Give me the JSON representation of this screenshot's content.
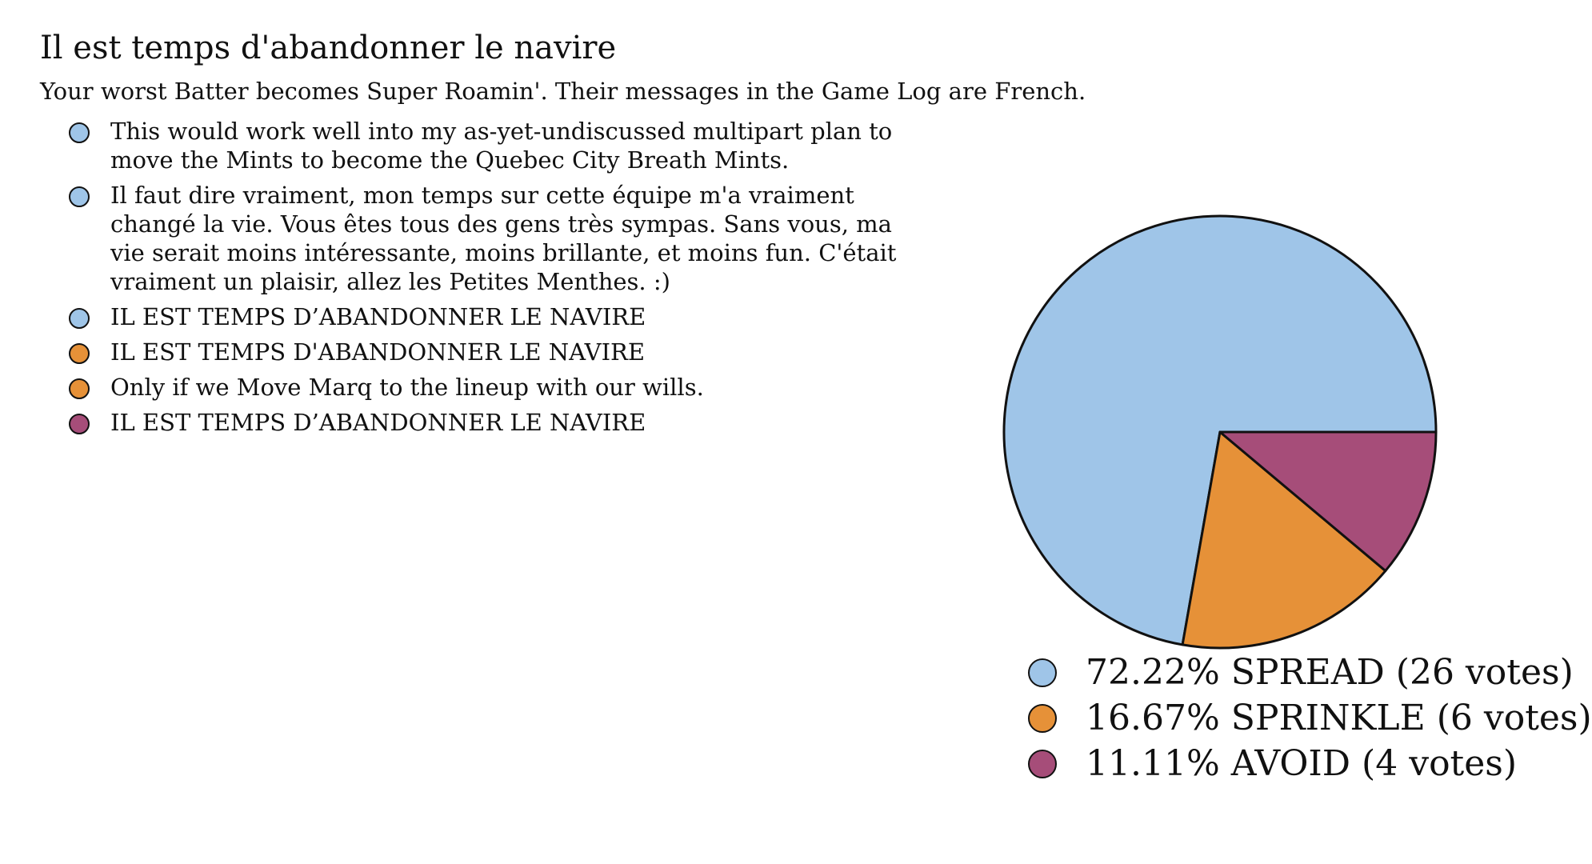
{
  "header": {
    "title": "Il est temps d'abandonner le navire",
    "subtitle": "Your worst Batter becomes Super Roamin'. Their messages in the Game Log are French."
  },
  "comments": [
    {
      "text": "This would work well into my as-yet-undiscussed multipart plan to\nmove the Mints to become the Quebec City Breath Mints.",
      "color": "#9fc5e8"
    },
    {
      "text": "Il faut dire vraiment, mon temps sur cette équipe m'a vraiment\nchangé la vie. Vous êtes tous des gens très sympas. Sans vous, ma\nvie serait moins intéressante, moins brillante, et moins fun. C'était\nvraiment un plaisir, allez les Petites Menthes. :)",
      "color": "#9fc5e8"
    },
    {
      "text": "IL EST TEMPS D’ABANDONNER LE NAVIRE",
      "color": "#9fc5e8"
    },
    {
      "text": "IL EST TEMPS D'ABANDONNER LE NAVIRE",
      "color": "#e69138"
    },
    {
      "text": "Only if we Move Marq to the lineup with our wills.",
      "color": "#e69138"
    },
    {
      "text": "IL EST TEMPS D’ABANDONNER LE NAVIRE",
      "color": "#a64d79"
    }
  ],
  "chart_data": {
    "type": "pie",
    "title": "",
    "categories": [
      "SPREAD",
      "SPRINKLE",
      "AVOID"
    ],
    "values": [
      26,
      6,
      4
    ],
    "percentages": [
      72.22,
      16.67,
      11.11
    ],
    "colors": [
      "#9fc5e8",
      "#e69138",
      "#a64d79"
    ],
    "legend": [
      {
        "label": "72.22% SPREAD (26 votes)",
        "color": "#9fc5e8"
      },
      {
        "label": "16.67% SPRINKLE (6 votes)",
        "color": "#e69138"
      },
      {
        "label": "11.11% AVOID (4 votes)",
        "color": "#a64d79"
      }
    ],
    "legend_position": "bottom-right"
  }
}
